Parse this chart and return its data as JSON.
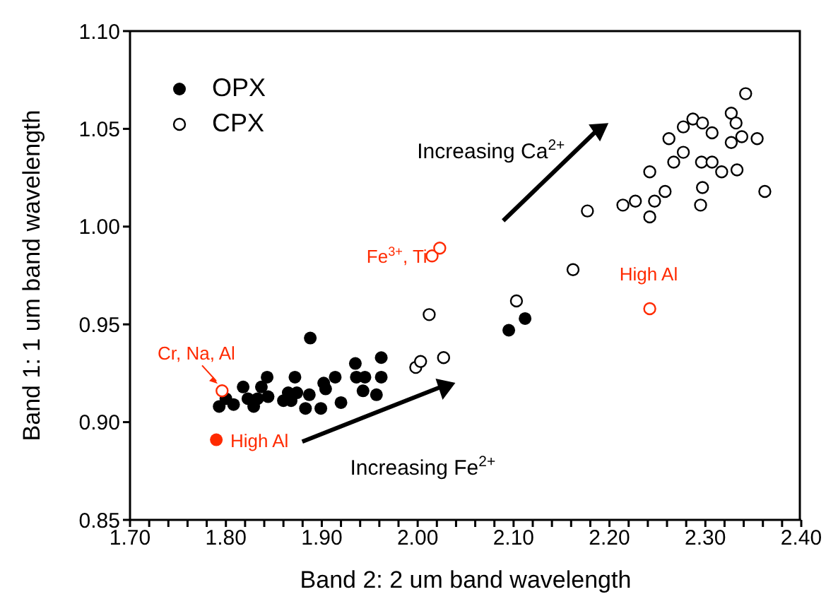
{
  "chart_data": {
    "type": "scatter",
    "xlabel": "Band 2: 2 um band wavelength",
    "ylabel": "Band 1: 1 um band wavelength",
    "xlim": [
      1.7,
      2.4
    ],
    "ylim": [
      0.85,
      1.1
    ],
    "xticks": [
      {
        "value": 1.7,
        "label": "1.70"
      },
      {
        "value": 1.72,
        "label": null
      },
      {
        "value": 1.74,
        "label": null
      },
      {
        "value": 1.76,
        "label": null
      },
      {
        "value": 1.78,
        "label": null
      },
      {
        "value": 1.8,
        "label": "1.80"
      },
      {
        "value": 1.82,
        "label": null
      },
      {
        "value": 1.84,
        "label": null
      },
      {
        "value": 1.86,
        "label": null
      },
      {
        "value": 1.88,
        "label": null
      },
      {
        "value": 1.9,
        "label": "1.90"
      },
      {
        "value": 1.92,
        "label": null
      },
      {
        "value": 1.94,
        "label": null
      },
      {
        "value": 1.96,
        "label": null
      },
      {
        "value": 1.98,
        "label": null
      },
      {
        "value": 2.0,
        "label": "2.00"
      },
      {
        "value": 2.02,
        "label": null
      },
      {
        "value": 2.04,
        "label": null
      },
      {
        "value": 2.06,
        "label": null
      },
      {
        "value": 2.08,
        "label": null
      },
      {
        "value": 2.1,
        "label": "2.10"
      },
      {
        "value": 2.12,
        "label": null
      },
      {
        "value": 2.14,
        "label": null
      },
      {
        "value": 2.16,
        "label": null
      },
      {
        "value": 2.18,
        "label": null
      },
      {
        "value": 2.2,
        "label": "2.20"
      },
      {
        "value": 2.22,
        "label": null
      },
      {
        "value": 2.24,
        "label": null
      },
      {
        "value": 2.26,
        "label": null
      },
      {
        "value": 2.28,
        "label": null
      },
      {
        "value": 2.3,
        "label": "2.30"
      },
      {
        "value": 2.32,
        "label": null
      },
      {
        "value": 2.34,
        "label": null
      },
      {
        "value": 2.36,
        "label": null
      },
      {
        "value": 2.38,
        "label": null
      },
      {
        "value": 2.4,
        "label": "2.40"
      }
    ],
    "yticks": [
      {
        "value": 0.85,
        "label": "0.85"
      },
      {
        "value": 0.9,
        "label": "0.90"
      },
      {
        "value": 0.95,
        "label": "0.95"
      },
      {
        "value": 1.0,
        "label": "1.00"
      },
      {
        "value": 1.05,
        "label": "1.05"
      },
      {
        "value": 1.1,
        "label": "1.10"
      }
    ],
    "legend": "top left",
    "marker": "circle",
    "series": [
      {
        "name": "OPX",
        "color": "#000000",
        "x": [
          1.793,
          1.8,
          1.808,
          1.818,
          1.823,
          1.829,
          1.833,
          1.837,
          1.843,
          1.844,
          1.86,
          1.865,
          1.868,
          1.872,
          1.874,
          1.883,
          1.887,
          1.888,
          1.899,
          1.902,
          1.904,
          1.914,
          1.92,
          1.935,
          1.936,
          1.945,
          1.943,
          1.957,
          1.962,
          1.962,
          2.095,
          2.112
        ],
        "values": [
          0.908,
          0.912,
          0.909,
          0.918,
          0.912,
          0.908,
          0.912,
          0.918,
          0.923,
          0.913,
          0.911,
          0.915,
          0.911,
          0.923,
          0.915,
          0.907,
          0.914,
          0.943,
          0.907,
          0.92,
          0.917,
          0.923,
          0.91,
          0.93,
          0.923,
          0.923,
          0.916,
          0.914,
          0.933,
          0.923,
          0.947,
          0.953
        ]
      },
      {
        "name": "CPX",
        "color": "#000000",
        "colors": [
          "#ffffff",
          "#ffffff",
          "#ffffff",
          "#ffffff",
          "#ffffff",
          "#ffffff",
          "#ffffff",
          "#ffffff",
          "#ffffff",
          "#ffffff",
          "#ffffff",
          "#ffffff",
          "#ffffff",
          "#ffffff",
          "#ffffff",
          "#ffffff",
          "#ffffff",
          "#ffffff",
          "#ffffff",
          "#ffffff",
          "#ffffff",
          "#ffffff",
          "#ffffff",
          "#ffffff",
          "#ffffff",
          "#ffffff",
          "#ffffff",
          "#ffffff",
          "#ffffff",
          "#ffffff",
          "#ffffff",
          "#ffffff",
          "#ffffff"
        ],
        "x": [
          1.998,
          2.003,
          2.012,
          2.027,
          2.103,
          2.162,
          2.177,
          2.214,
          2.227,
          2.242,
          2.242,
          2.247,
          2.258,
          2.262,
          2.267,
          2.277,
          2.277,
          2.287,
          2.295,
          2.297,
          2.296,
          2.297,
          2.307,
          2.307,
          2.317,
          2.327,
          2.327,
          2.332,
          2.333,
          2.338,
          2.342,
          2.354,
          2.362
        ],
        "values": [
          0.928,
          0.931,
          0.955,
          0.933,
          0.962,
          0.978,
          1.008,
          1.011,
          1.013,
          1.005,
          1.028,
          1.013,
          1.018,
          1.045,
          1.033,
          1.038,
          1.051,
          1.055,
          1.011,
          1.02,
          1.033,
          1.053,
          1.033,
          1.048,
          1.028,
          1.058,
          1.043,
          1.053,
          1.029,
          1.046,
          1.068,
          1.045,
          1.018
        ]
      },
      {
        "color": "#ff2a00",
        "x": [
          1.79
        ],
        "values": [
          0.891
        ]
      },
      {
        "color": "#ff2a00",
        "colors": [
          "#ffffff",
          "#ffffff",
          "#ffffff",
          "#ffffff"
        ],
        "x": [
          1.796,
          2.015,
          2.023,
          2.242
        ],
        "values": [
          0.916,
          0.985,
          0.989,
          0.958
        ]
      }
    ],
    "annotations": [
      {
        "text": "High Al",
        "x": 1.79,
        "y": 0.891
      },
      {
        "text": "Cr, Na, Al",
        "x": 1.796,
        "y": 0.916
      },
      {
        "text": "Fe$^{3+}$, Ti",
        "x": 2.015,
        "y": 0.985
      },
      {
        "text": "High Al",
        "x": 2.242,
        "y": 0.958
      },
      "Increasing Fe$^{2+}$",
      "Increasing Ca$^{2+}$"
    ]
  }
}
